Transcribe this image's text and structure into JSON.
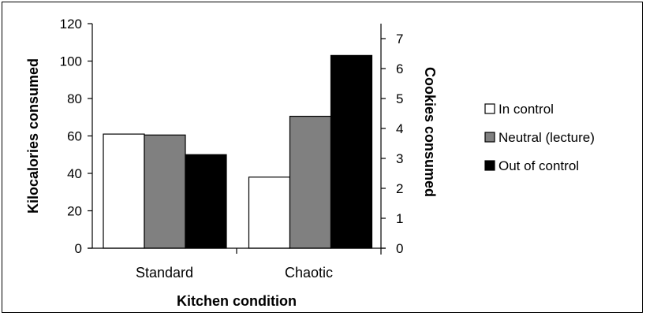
{
  "chart_data": {
    "type": "bar",
    "categories": [
      "Standard",
      "Chaotic"
    ],
    "series": [
      {
        "name": "In control",
        "values": [
          61,
          38
        ],
        "color": "#ffffff"
      },
      {
        "name": "Neutral (lecture)",
        "values": [
          60.5,
          70.5
        ],
        "color": "#808080"
      },
      {
        "name": "Out of control",
        "values": [
          50,
          103
        ],
        "color": "#000000"
      }
    ],
    "xlabel": "Kitchen condition",
    "ylabel": "Kilocalories consumed",
    "y2label": "Cookies consumed",
    "ylim": [
      0,
      120
    ],
    "yticks": [
      "0",
      "20",
      "40",
      "60",
      "80",
      "100",
      "120"
    ],
    "y2lim": [
      0,
      7.5
    ],
    "y2ticks": [
      "0",
      "1",
      "2",
      "3",
      "4",
      "5",
      "6",
      "7"
    ],
    "grid": false,
    "legend_position": "right"
  }
}
